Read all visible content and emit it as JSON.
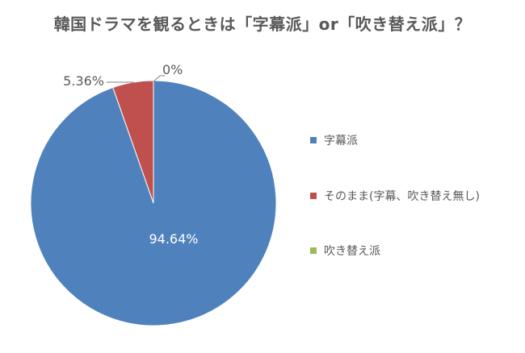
{
  "chart_data": {
    "type": "pie",
    "title": "韓国ドラマを観るときは「字幕派」or「吹き替え派」？",
    "categories": [
      "字幕派",
      "そのまま(字幕、吹き替え無し)",
      "吹き替え派"
    ],
    "values": [
      94.64,
      5.36,
      0
    ],
    "data_labels": [
      "94.64%",
      "5.36%",
      "0%"
    ],
    "colors": [
      "#4F81BD",
      "#C0504D",
      "#9BBB59"
    ],
    "legend_position": "right"
  }
}
